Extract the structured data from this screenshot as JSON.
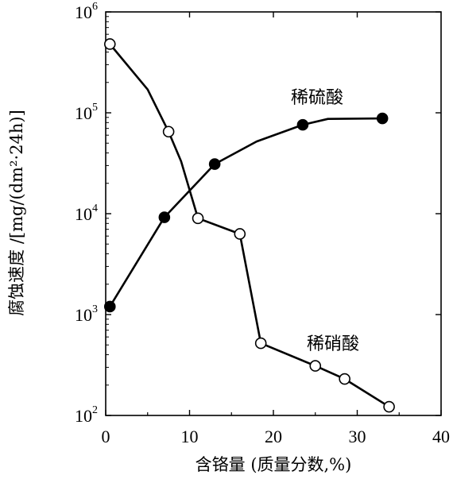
{
  "chart_data": {
    "type": "line",
    "title": "",
    "xlabel": "含铬量 (质量分数,%)",
    "ylabel": "腐蚀速度 /[mg/(dm²·24h)]",
    "xlim": [
      0,
      40
    ],
    "ylim": [
      100,
      1000000
    ],
    "yscale": "log",
    "xticks": [
      0,
      10,
      20,
      30,
      40
    ],
    "yticks": [
      {
        "base": "10",
        "exp": "2",
        "value": 100
      },
      {
        "base": "10",
        "exp": "3",
        "value": 1000
      },
      {
        "base": "10",
        "exp": "4",
        "value": 10000
      },
      {
        "base": "10",
        "exp": "5",
        "value": 100000
      },
      {
        "base": "10",
        "exp": "6",
        "value": 1000000
      }
    ],
    "grid": false,
    "series": [
      {
        "name": "稀硝酸",
        "marker": "open-circle",
        "points": [
          {
            "x": 0.5,
            "y": 480000,
            "marker": true
          },
          {
            "x": 5.0,
            "y": 170000,
            "marker": false
          },
          {
            "x": 7.5,
            "y": 65000,
            "marker": true
          },
          {
            "x": 9.0,
            "y": 33000,
            "marker": false
          },
          {
            "x": 11.0,
            "y": 9000,
            "marker": true
          },
          {
            "x": 16.0,
            "y": 6300,
            "marker": true
          },
          {
            "x": 18.5,
            "y": 520,
            "marker": true
          },
          {
            "x": 25.0,
            "y": 310,
            "marker": true
          },
          {
            "x": 28.5,
            "y": 230,
            "marker": true
          },
          {
            "x": 33.8,
            "y": 122,
            "marker": true
          }
        ]
      },
      {
        "name": "稀硫酸",
        "marker": "filled-circle",
        "points": [
          {
            "x": 0.5,
            "y": 1200,
            "marker": true
          },
          {
            "x": 7.0,
            "y": 9200,
            "marker": true
          },
          {
            "x": 13.0,
            "y": 31000,
            "marker": true
          },
          {
            "x": 18.0,
            "y": 52000,
            "marker": false
          },
          {
            "x": 23.5,
            "y": 76000,
            "marker": true
          },
          {
            "x": 26.5,
            "y": 87000,
            "marker": false
          },
          {
            "x": 33.0,
            "y": 88000,
            "marker": true
          }
        ]
      }
    ]
  }
}
